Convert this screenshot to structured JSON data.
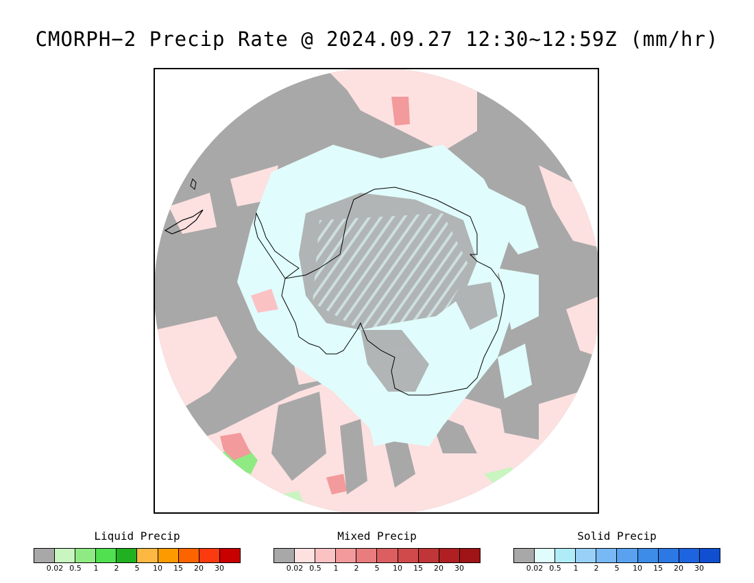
{
  "title": "CMORPH−2 Precip Rate @ 2024.09.27 12:30~12:59Z (mm/hr)",
  "map": {
    "projection": "south-polar-stereographic",
    "background_color": "#a8a8a8",
    "coastline_color": "#000000",
    "regions": [
      "antarctica-coastline",
      "south-america-tip"
    ]
  },
  "legends": [
    {
      "title": "Liquid Precip",
      "colors": [
        "#a8a8a8",
        "#c8f5c0",
        "#90ea84",
        "#50e050",
        "#20b020",
        "#fcb840",
        "#fc9a00",
        "#fc6400",
        "#fc3a10",
        "#c80000"
      ],
      "tick_labels": [
        "0.02",
        "0.5",
        "1",
        "2",
        "5",
        "10",
        "15",
        "20",
        "30"
      ]
    },
    {
      "title": "Mixed Precip",
      "colors": [
        "#a8a8a8",
        "#fde0e0",
        "#fbc2c4",
        "#f29a9c",
        "#e87c7e",
        "#dc5e60",
        "#d04a4c",
        "#c03638",
        "#b02022",
        "#a01416"
      ],
      "tick_labels": [
        "0.02",
        "0.5",
        "1",
        "2",
        "5",
        "10",
        "15",
        "20",
        "30"
      ]
    },
    {
      "title": "Solid Precip",
      "colors": [
        "#a8a8a8",
        "#e0fcfc",
        "#b0ecf8",
        "#98d0f8",
        "#78b8f4",
        "#5aa2f0",
        "#3c8ce8",
        "#2c78e4",
        "#1e64e0",
        "#1050d0"
      ],
      "tick_labels": [
        "0.02",
        "0.5",
        "1",
        "2",
        "5",
        "10",
        "15",
        "20",
        "30"
      ]
    }
  ]
}
